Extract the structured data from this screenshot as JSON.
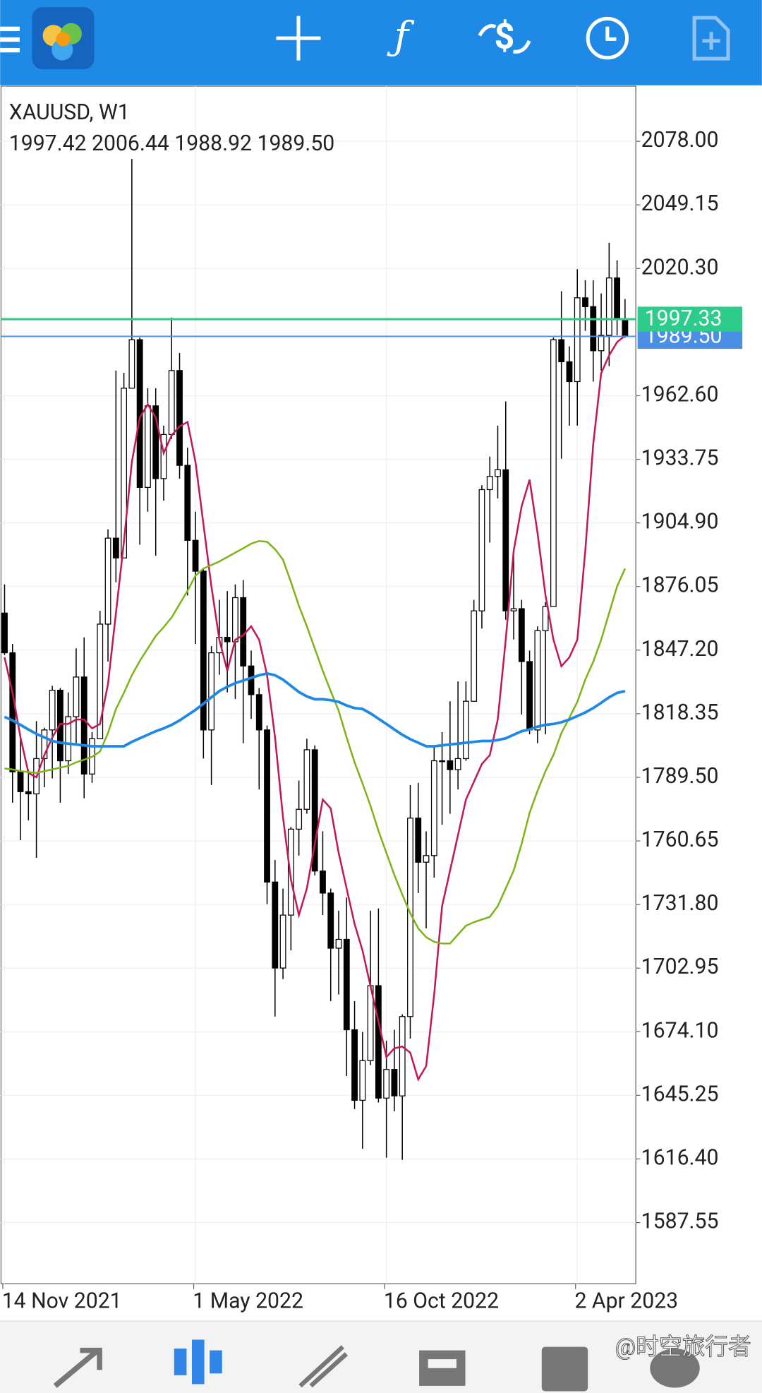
{
  "chart_data": {
    "type": "candlestick",
    "title": "XAUUSD, W1",
    "subtitle": "1997.42 2006.44 1988.92 1989.50",
    "categories": [
      "14 Nov 2021",
      null,
      null,
      null,
      null,
      null,
      null,
      null,
      null,
      null,
      null,
      null,
      null,
      null,
      null,
      null,
      null,
      null,
      null,
      null,
      null,
      null,
      null,
      null,
      "1 May 2022",
      null,
      null,
      null,
      null,
      null,
      null,
      null,
      null,
      null,
      null,
      null,
      null,
      null,
      null,
      null,
      null,
      null,
      null,
      null,
      null,
      null,
      null,
      null,
      "16 Oct 2022",
      null,
      null,
      null,
      null,
      null,
      null,
      null,
      null,
      null,
      null,
      null,
      null,
      null,
      null,
      null,
      null,
      null,
      null,
      null,
      null,
      null,
      null,
      null,
      "2 Apr 2023",
      null,
      null,
      null,
      null,
      null,
      null
    ],
    "open": [
      1864,
      1846,
      1792,
      1783,
      1782,
      1798,
      1811,
      1829,
      1797,
      1817,
      1835,
      1791,
      1807,
      1859,
      1898,
      1889,
      1966,
      1988,
      1921,
      1958,
      1925,
      1945,
      1974,
      1931,
      1897,
      1883,
      1811,
      1846,
      1853,
      1851,
      1871,
      1840,
      1827,
      1811,
      1742,
      1703,
      1727,
      1766,
      1775,
      1802,
      1747,
      1737,
      1712,
      1716,
      1675,
      1643,
      1661,
      1695,
      1644,
      1657,
      1645,
      1681,
      1771,
      1751,
      1754,
      1797,
      1797,
      1793,
      1798,
      1824,
      1865,
      1920,
      1926,
      1929,
      1865,
      1866,
      1842,
      1811,
      1856,
      1867,
      1988,
      1978,
      1969,
      2007,
      2003,
      1983,
      1990,
      2016,
      1997.42
    ],
    "high": [
      1877,
      1850,
      1808,
      1793,
      1815,
      1812,
      1831,
      1830,
      1828,
      1848,
      1853,
      1810,
      1865,
      1902,
      1974,
      1973,
      2070,
      1989,
      1966,
      1966,
      1949,
      1998,
      1982,
      1939,
      1910,
      1884,
      1849,
      1870,
      1874,
      1877,
      1879,
      1847,
      1830,
      1813,
      1752,
      1739,
      1767,
      1788,
      1807,
      1804,
      1765,
      1739,
      1729,
      1735,
      1688,
      1674,
      1729,
      1730,
      1670,
      1675,
      1682,
      1786,
      1787,
      1765,
      1804,
      1810,
      1824,
      1833,
      1833,
      1870,
      1922,
      1935,
      1949,
      1960,
      1890,
      1870,
      1847,
      1858,
      1869,
      1989,
      2010,
      1985,
      2020,
      2015,
      2015,
      2009,
      2032,
      2024,
      2006.44
    ],
    "low": [
      1845,
      1778,
      1761,
      1770,
      1753,
      1785,
      1789,
      1778,
      1791,
      1805,
      1780,
      1787,
      1807,
      1842,
      1878,
      1889,
      1966,
      1895,
      1910,
      1890,
      1915,
      1943,
      1925,
      1872,
      1850,
      1798,
      1786,
      1836,
      1828,
      1825,
      1805,
      1816,
      1784,
      1732,
      1681,
      1698,
      1711,
      1754,
      1773,
      1745,
      1727,
      1688,
      1691,
      1654,
      1639,
      1621,
      1659,
      1642,
      1617,
      1638,
      1616,
      1671,
      1737,
      1721,
      1744,
      1768,
      1773,
      1784,
      1797,
      1824,
      1857,
      1896,
      1916,
      1861,
      1852,
      1818,
      1809,
      1805,
      1809,
      1867,
      1934,
      1949,
      1949,
      1992,
      1969,
      1974,
      1976,
      1990,
      1988.92
    ],
    "close": [
      1846,
      1792,
      1783,
      1782,
      1798,
      1811,
      1829,
      1797,
      1817,
      1835,
      1791,
      1807,
      1859,
      1898,
      1889,
      1966,
      1988,
      1921,
      1958,
      1925,
      1945,
      1974,
      1931,
      1897,
      1883,
      1811,
      1846,
      1853,
      1851,
      1871,
      1840,
      1827,
      1811,
      1742,
      1703,
      1727,
      1766,
      1775,
      1802,
      1747,
      1737,
      1712,
      1716,
      1675,
      1643,
      1661,
      1695,
      1644,
      1657,
      1645,
      1681,
      1771,
      1751,
      1754,
      1797,
      1797,
      1793,
      1798,
      1824,
      1865,
      1920,
      1926,
      1929,
      1865,
      1866,
      1842,
      1811,
      1856,
      1867,
      1988,
      1978,
      1969,
      2007,
      2003,
      1983,
      1990,
      2016,
      1997.42,
      1989.5
    ],
    "bull_color": "#ffffff",
    "bear_color": "#000000",
    "lines": [
      {
        "color": "#c2185b",
        "values": [
          1843.9,
          1827.8,
          1807.6,
          1791.5,
          1789.5,
          1799.6,
          1807.6,
          1813.7,
          1813.7,
          1815.7,
          1815.7,
          1811.7,
          1813.7,
          1831.8,
          1864.0,
          1896.3,
          1932.5,
          1952.7,
          1958.7,
          1952.7,
          1936.6,
          1944.6,
          1948.7,
          1950.7,
          1932.5,
          1904.3,
          1876.1,
          1851.9,
          1837.8,
          1851.9,
          1854.0,
          1858.0,
          1851.9,
          1835.8,
          1807.6,
          1771.4,
          1743.1,
          1727.0,
          1739.1,
          1759.3,
          1779.4,
          1775.4,
          1755.2,
          1739.1,
          1723.0,
          1710.9,
          1694.8,
          1678.7,
          1662.6,
          1666.6,
          1667.4,
          1664.6,
          1652.5,
          1658.5,
          1690.8,
          1731.1,
          1747.2,
          1763.3,
          1779.4,
          1787.5,
          1795.5,
          1799.6,
          1815.7,
          1851.9,
          1892.2,
          1912.4,
          1924.5,
          1900.3,
          1872.1,
          1851.9,
          1839.9,
          1843.9,
          1851.9,
          1892.2,
          1940.6,
          1972.8,
          1980.9,
          1986.9,
          1989.8
        ]
      },
      {
        "color": "#7cb518",
        "values": [
          1793.5,
          1793.1,
          1792.3,
          1791.9,
          1791.5,
          1792.3,
          1793.1,
          1793.9,
          1794.7,
          1796.3,
          1797.5,
          1798.8,
          1801.2,
          1809.6,
          1820.5,
          1827.8,
          1835.8,
          1842.3,
          1847.9,
          1853.6,
          1857.6,
          1862.0,
          1868.1,
          1874.1,
          1881.0,
          1884.2,
          1885.8,
          1887.4,
          1889.4,
          1891.4,
          1893.4,
          1895.5,
          1896.7,
          1896.3,
          1893.0,
          1888.2,
          1878.1,
          1867.3,
          1858.0,
          1847.9,
          1837.8,
          1828.6,
          1819.7,
          1807.6,
          1796.3,
          1786.7,
          1776.6,
          1765.3,
          1755.2,
          1745.2,
          1736.3,
          1727.8,
          1721.0,
          1717.0,
          1714.9,
          1714.1,
          1714.1,
          1718.2,
          1722.2,
          1723.8,
          1725.0,
          1726.2,
          1731.1,
          1739.1,
          1747.2,
          1759.3,
          1773.4,
          1783.4,
          1792.3,
          1799.6,
          1809.6,
          1816.5,
          1823.7,
          1833.8,
          1841.9,
          1851.9,
          1864.0,
          1876.1,
          1884.2
        ]
      },
      {
        "color": "#1e88e5",
        "values": [
          1816.9,
          1815.3,
          1813.3,
          1811.2,
          1809.2,
          1807.6,
          1806.0,
          1805.2,
          1804.8,
          1804.4,
          1804.0,
          1803.6,
          1803.6,
          1803.6,
          1803.6,
          1803.6,
          1805.6,
          1807.2,
          1808.8,
          1810.4,
          1811.7,
          1813.3,
          1815.3,
          1817.7,
          1820.1,
          1822.9,
          1825.8,
          1828.6,
          1830.6,
          1832.2,
          1833.4,
          1834.6,
          1835.8,
          1836.6,
          1835.8,
          1833.8,
          1831.0,
          1828.2,
          1826.2,
          1824.9,
          1824.9,
          1824.5,
          1823.7,
          1822.1,
          1820.9,
          1820.5,
          1818.5,
          1816.1,
          1813.7,
          1811.2,
          1808.8,
          1806.8,
          1805.2,
          1803.6,
          1803.6,
          1804.0,
          1804.4,
          1804.8,
          1805.2,
          1805.6,
          1806.0,
          1806.0,
          1806.4,
          1807.2,
          1808.8,
          1810.4,
          1811.2,
          1812.5,
          1813.3,
          1813.7,
          1814.5,
          1815.7,
          1817.3,
          1818.9,
          1820.9,
          1823.3,
          1825.8,
          1827.8,
          1828.6
        ]
      }
    ],
    "price_lines": [
      {
        "value": 1997.33,
        "label": "1997.33",
        "color": "#2ecc8a"
      },
      {
        "value": 1989.5,
        "label": "1989.50",
        "color": "#4a8fe6"
      }
    ],
    "ylim": [
      1559.8,
      2103.0
    ],
    "yticks": [
      {
        "value": 2078.0,
        "label": "2078.00"
      },
      {
        "value": 2049.15,
        "label": "2049.15"
      },
      {
        "value": 2020.3,
        "label": "2020.30"
      },
      {
        "value": 1962.6,
        "label": "1962.60"
      },
      {
        "value": 1933.75,
        "label": "1933.75"
      },
      {
        "value": 1904.9,
        "label": "1904.90"
      },
      {
        "value": 1876.05,
        "label": "1876.05"
      },
      {
        "value": 1847.2,
        "label": "1847.20"
      },
      {
        "value": 1818.35,
        "label": "1818.35"
      },
      {
        "value": 1789.5,
        "label": "1789.50"
      },
      {
        "value": 1760.65,
        "label": "1760.65"
      },
      {
        "value": 1731.8,
        "label": "1731.80"
      },
      {
        "value": 1702.95,
        "label": "1702.95"
      },
      {
        "value": 1674.1,
        "label": "1674.10"
      },
      {
        "value": 1645.25,
        "label": "1645.25"
      },
      {
        "value": 1616.4,
        "label": "1616.40"
      },
      {
        "value": 1587.55,
        "label": "1587.55"
      }
    ],
    "grid": true,
    "watermark": "@时空旅行者"
  }
}
